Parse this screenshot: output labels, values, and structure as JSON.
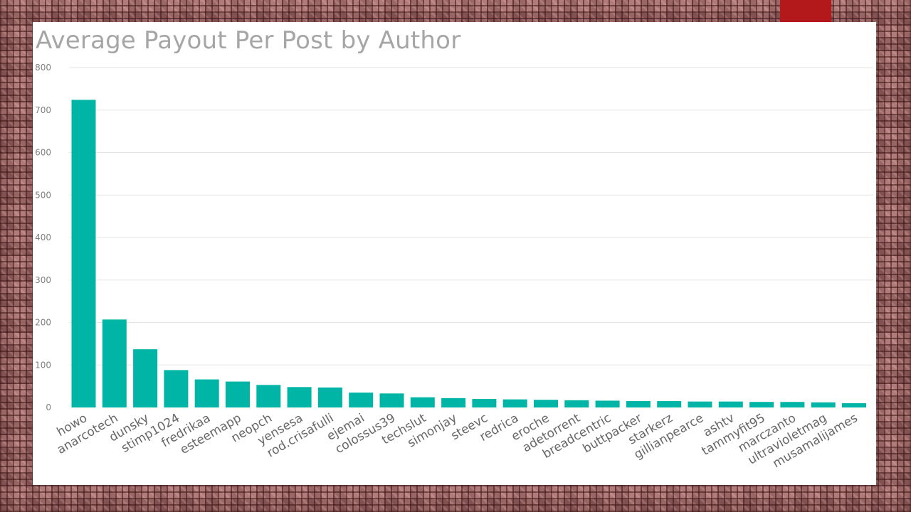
{
  "colors": {
    "bar": "#00b5a5",
    "accent": "#b3191b",
    "title": "#a6a6a6",
    "gridline": "#e6e6e6"
  },
  "chart_data": {
    "type": "bar",
    "title": "Average Payout Per Post by Author",
    "xlabel": "",
    "ylabel": "",
    "ylim": [
      0,
      800
    ],
    "yticks": [
      0,
      100,
      200,
      300,
      400,
      500,
      600,
      700,
      800
    ],
    "grid": true,
    "legend": "none",
    "categories": [
      "howo",
      "anarcotech",
      "dunsky",
      "stimp1024",
      "fredrikaa",
      "esteemapp",
      "neopch",
      "yensesa",
      "rod.crisafulli",
      "ejemai",
      "colossus39",
      "techslut",
      "simonjay",
      "steevc",
      "redrica",
      "eroche",
      "adetorrent",
      "breadcentric",
      "buttpacker",
      "starkerz",
      "gillianpearce",
      "ashtv",
      "tammyfit95",
      "marczanto",
      "ultravioletmag",
      "musamalijames"
    ],
    "values": [
      724,
      207,
      137,
      88,
      66,
      61,
      53,
      48,
      47,
      35,
      33,
      24,
      22,
      20,
      19,
      18,
      17,
      16,
      15,
      15,
      14,
      14,
      13,
      13,
      12,
      10
    ]
  }
}
